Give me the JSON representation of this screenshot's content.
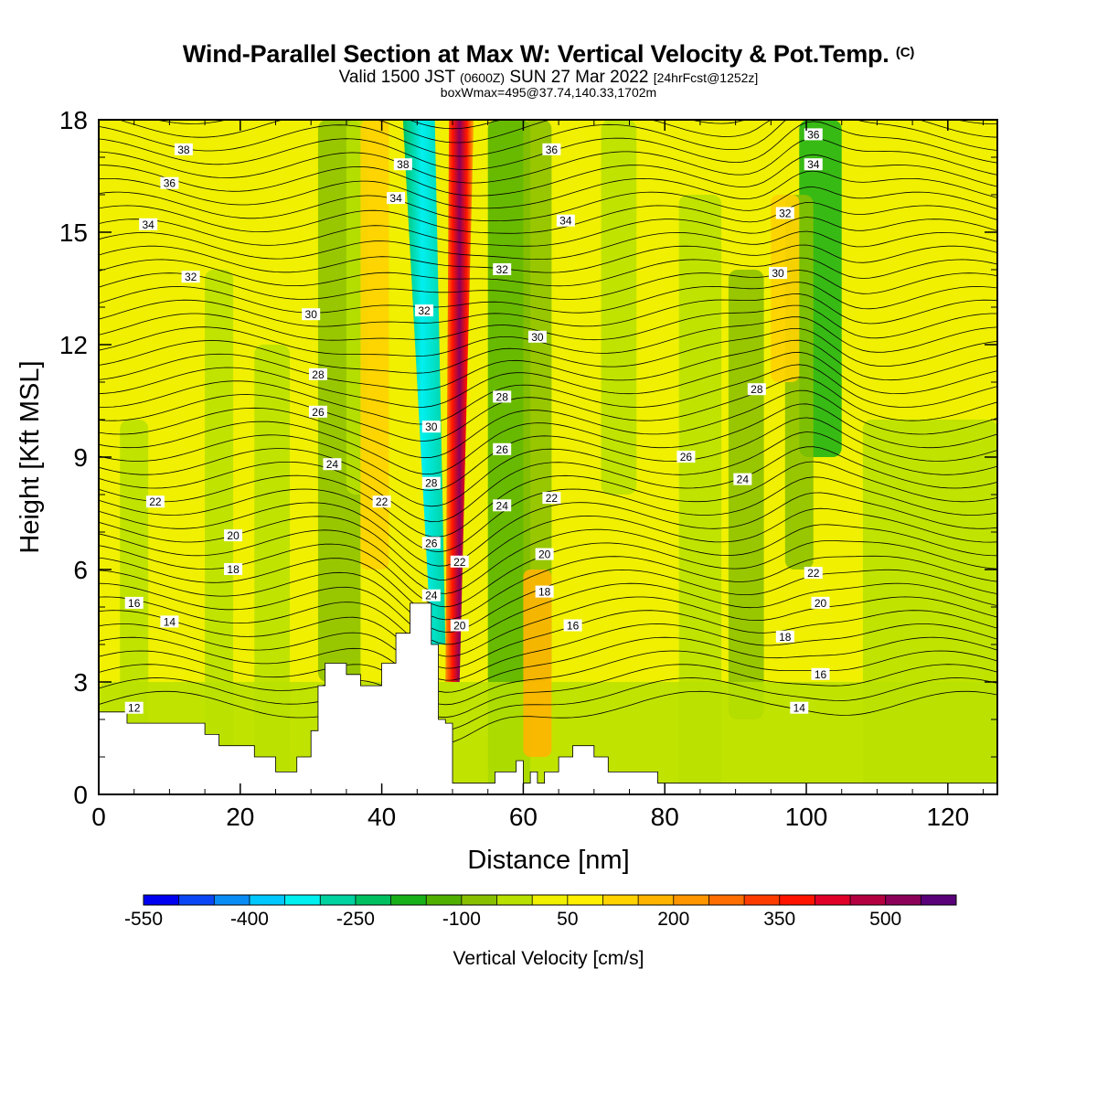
{
  "header": {
    "title": "Wind-Parallel Section at Max W: Vertical Velocity & Pot.Temp.",
    "copyright": "(C)",
    "valid_a": "Valid 1500 JST",
    "valid_b": "(0600Z)",
    "valid_c": "SUN 27 Mar 2022",
    "valid_d": "[24hrFcst@1252z]",
    "boxinfo": "boxWmax=495@37.74,140.33,1702m"
  },
  "chart_data": {
    "type": "heatmap",
    "xlabel": "Distance [nm]",
    "ylabel": "Height [Kft MSL]",
    "xlim": [
      0,
      127
    ],
    "ylim": [
      0,
      18
    ],
    "xticks": [
      "0",
      "20",
      "40",
      "60",
      "80",
      "100",
      "120"
    ],
    "yticks": [
      "0",
      "3",
      "6",
      "9",
      "12",
      "15",
      "18"
    ],
    "colorbar": {
      "label": "Vertical Velocity [cm/s]",
      "tick_labels": [
        "-550",
        "-400",
        "-250",
        "-100",
        "50",
        "200",
        "350",
        "500"
      ],
      "colors": [
        "#0000f0",
        "#0a46f5",
        "#0a8cf5",
        "#00c8ff",
        "#00f0f0",
        "#00d2a0",
        "#00c060",
        "#18b018",
        "#50b000",
        "#88c000",
        "#b8e000",
        "#f0f000",
        "#fff000",
        "#ffd200",
        "#ffb400",
        "#ff9600",
        "#ff6e00",
        "#ff3c00",
        "#ff1400",
        "#e00028",
        "#b40040",
        "#8c005a",
        "#5a0078"
      ]
    },
    "field_features": [
      {
        "kind": "updraft",
        "x": 50.5,
        "max_cm_s": 495
      },
      {
        "kind": "downdraft",
        "x": 46.5,
        "min_cm_s": -300
      }
    ],
    "contour_labels": [
      {
        "text": "38",
        "x": 12,
        "y": 17.2
      },
      {
        "text": "36",
        "x": 10,
        "y": 16.3
      },
      {
        "text": "34",
        "x": 7,
        "y": 15.2
      },
      {
        "text": "32",
        "x": 13,
        "y": 13.8
      },
      {
        "text": "30",
        "x": 30,
        "y": 12.8
      },
      {
        "text": "28",
        "x": 31,
        "y": 11.2
      },
      {
        "text": "26",
        "x": 31,
        "y": 10.2
      },
      {
        "text": "24",
        "x": 33,
        "y": 8.8
      },
      {
        "text": "22",
        "x": 8,
        "y": 7.8
      },
      {
        "text": "20",
        "x": 19,
        "y": 6.9
      },
      {
        "text": "18",
        "x": 19,
        "y": 6.0
      },
      {
        "text": "16",
        "x": 5,
        "y": 5.1
      },
      {
        "text": "14",
        "x": 10,
        "y": 4.6
      },
      {
        "text": "12",
        "x": 5,
        "y": 2.3
      },
      {
        "text": "38",
        "x": 43,
        "y": 16.8
      },
      {
        "text": "34",
        "x": 42,
        "y": 15.9
      },
      {
        "text": "32",
        "x": 46,
        "y": 12.9
      },
      {
        "text": "30",
        "x": 47,
        "y": 9.8
      },
      {
        "text": "28",
        "x": 47,
        "y": 8.3
      },
      {
        "text": "26",
        "x": 47,
        "y": 6.7
      },
      {
        "text": "24",
        "x": 47,
        "y": 5.3
      },
      {
        "text": "22",
        "x": 40,
        "y": 7.8
      },
      {
        "text": "22",
        "x": 51,
        "y": 6.2
      },
      {
        "text": "20",
        "x": 51,
        "y": 4.5
      },
      {
        "text": "36",
        "x": 64,
        "y": 17.2
      },
      {
        "text": "34",
        "x": 66,
        "y": 15.3
      },
      {
        "text": "32",
        "x": 57,
        "y": 14.0
      },
      {
        "text": "30",
        "x": 62,
        "y": 12.2
      },
      {
        "text": "28",
        "x": 57,
        "y": 10.6
      },
      {
        "text": "26",
        "x": 57,
        "y": 9.2
      },
      {
        "text": "24",
        "x": 57,
        "y": 7.7
      },
      {
        "text": "22",
        "x": 64,
        "y": 7.9
      },
      {
        "text": "20",
        "x": 63,
        "y": 6.4
      },
      {
        "text": "18",
        "x": 63,
        "y": 5.4
      },
      {
        "text": "16",
        "x": 67,
        "y": 4.5
      },
      {
        "text": "36",
        "x": 101,
        "y": 17.6
      },
      {
        "text": "34",
        "x": 101,
        "y": 16.8
      },
      {
        "text": "32",
        "x": 97,
        "y": 15.5
      },
      {
        "text": "30",
        "x": 96,
        "y": 13.9
      },
      {
        "text": "28",
        "x": 93,
        "y": 10.8
      },
      {
        "text": "26",
        "x": 83,
        "y": 9.0
      },
      {
        "text": "24",
        "x": 91,
        "y": 8.4
      },
      {
        "text": "22",
        "x": 101,
        "y": 5.9
      },
      {
        "text": "20",
        "x": 102,
        "y": 5.1
      },
      {
        "text": "18",
        "x": 97,
        "y": 4.2
      },
      {
        "text": "16",
        "x": 102,
        "y": 3.2
      },
      {
        "text": "14",
        "x": 99,
        "y": 2.3
      }
    ]
  }
}
